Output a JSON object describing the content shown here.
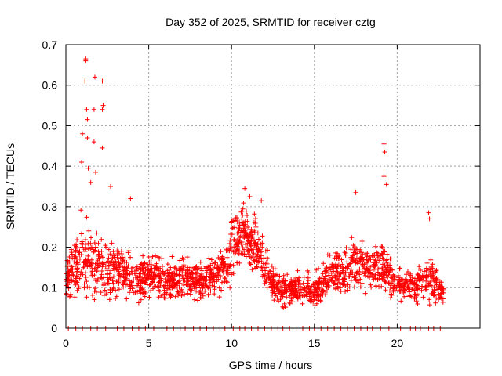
{
  "chart_data": {
    "type": "scatter",
    "title": "Day 352 of 2025, SRMTID for receiver cztg",
    "xlabel": "GPS time / hours",
    "ylabel": "SRMTID / TECUs",
    "xlim": [
      0,
      25
    ],
    "ylim": [
      0,
      0.7
    ],
    "x_ticks": [
      0,
      5,
      10,
      15,
      20
    ],
    "x_tick_labels": [
      "0",
      "5",
      "10",
      "15",
      "20"
    ],
    "y_ticks": [
      0,
      0.1,
      0.2,
      0.3,
      0.4,
      0.5,
      0.6,
      0.7
    ],
    "y_tick_labels": [
      "0",
      "0.1",
      "0.2",
      "0.3",
      "0.4",
      "0.5",
      "0.6",
      "0.7"
    ],
    "grid": true,
    "marker": "plus",
    "colors": {
      "series": "#ff0000",
      "grid": "#a0a0a0",
      "axis": "#000000"
    },
    "series": [
      {
        "name": "SRMTID",
        "envelope_hours": [
          0,
          0.5,
          1,
          1.5,
          2,
          2.5,
          3,
          3.5,
          4,
          4.5,
          5,
          5.5,
          6,
          6.5,
          7,
          7.5,
          8,
          8.5,
          9,
          9.5,
          10,
          10.5,
          11,
          11.5,
          12,
          12.5,
          13,
          13.5,
          14,
          14.5,
          15,
          15.5,
          16,
          16.5,
          17,
          17.5,
          18,
          18.5,
          19,
          19.5,
          20,
          20.5,
          21,
          21.5,
          22,
          22.5,
          22.8
        ],
        "envelope_center": [
          0.12,
          0.14,
          0.18,
          0.16,
          0.15,
          0.14,
          0.15,
          0.14,
          0.12,
          0.11,
          0.14,
          0.13,
          0.11,
          0.12,
          0.13,
          0.12,
          0.11,
          0.12,
          0.13,
          0.15,
          0.19,
          0.23,
          0.22,
          0.2,
          0.16,
          0.11,
          0.1,
          0.09,
          0.1,
          0.1,
          0.09,
          0.11,
          0.13,
          0.14,
          0.14,
          0.16,
          0.15,
          0.14,
          0.16,
          0.13,
          0.12,
          0.1,
          0.1,
          0.11,
          0.12,
          0.1,
          0.09
        ],
        "envelope_spread": [
          0.05,
          0.07,
          0.11,
          0.09,
          0.09,
          0.07,
          0.07,
          0.07,
          0.06,
          0.05,
          0.06,
          0.06,
          0.05,
          0.05,
          0.05,
          0.05,
          0.04,
          0.05,
          0.05,
          0.06,
          0.08,
          0.08,
          0.07,
          0.07,
          0.05,
          0.04,
          0.04,
          0.04,
          0.04,
          0.04,
          0.04,
          0.05,
          0.06,
          0.06,
          0.06,
          0.07,
          0.06,
          0.06,
          0.08,
          0.05,
          0.05,
          0.04,
          0.04,
          0.05,
          0.06,
          0.04,
          0.03
        ],
        "peaks": [
          {
            "x": 1.2,
            "y": 0.665
          },
          {
            "x": 1.2,
            "y": 0.66
          },
          {
            "x": 1.15,
            "y": 0.61
          },
          {
            "x": 1.75,
            "y": 0.62
          },
          {
            "x": 2.2,
            "y": 0.61
          },
          {
            "x": 1.25,
            "y": 0.54
          },
          {
            "x": 1.7,
            "y": 0.54
          },
          {
            "x": 2.25,
            "y": 0.55
          },
          {
            "x": 2.2,
            "y": 0.54
          },
          {
            "x": 1.3,
            "y": 0.515
          },
          {
            "x": 1.0,
            "y": 0.48
          },
          {
            "x": 1.3,
            "y": 0.47
          },
          {
            "x": 1.7,
            "y": 0.46
          },
          {
            "x": 2.2,
            "y": 0.445
          },
          {
            "x": 0.95,
            "y": 0.41
          },
          {
            "x": 1.35,
            "y": 0.395
          },
          {
            "x": 1.8,
            "y": 0.385
          },
          {
            "x": 1.5,
            "y": 0.36
          },
          {
            "x": 2.7,
            "y": 0.35
          },
          {
            "x": 3.9,
            "y": 0.32
          },
          {
            "x": 10.8,
            "y": 0.345
          },
          {
            "x": 11.1,
            "y": 0.325
          },
          {
            "x": 11.8,
            "y": 0.315
          },
          {
            "x": 17.5,
            "y": 0.335
          },
          {
            "x": 19.2,
            "y": 0.455
          },
          {
            "x": 19.25,
            "y": 0.435
          },
          {
            "x": 19.2,
            "y": 0.375
          },
          {
            "x": 19.35,
            "y": 0.355
          },
          {
            "x": 21.9,
            "y": 0.285
          },
          {
            "x": 21.95,
            "y": 0.27
          }
        ],
        "zero_hours": [
          0.15,
          0.6,
          1.0,
          1.5,
          1.9,
          2.4,
          3.1,
          3.5,
          4.0,
          4.4,
          4.8,
          5.3,
          5.8,
          6.1,
          6.5,
          6.9,
          7.2,
          7.7,
          8.1,
          8.5,
          8.9,
          9.3,
          9.6,
          10.1,
          10.5,
          10.8,
          11.2,
          11.6,
          12.0,
          12.4,
          12.8,
          13.1,
          13.5,
          13.9,
          14.3,
          14.7,
          15.0,
          15.4,
          15.8,
          16.2,
          16.6,
          17.0,
          17.4,
          17.8,
          18.2,
          18.5,
          19.0,
          19.5,
          20.2,
          20.8,
          21.1,
          21.4,
          21.9,
          22.2,
          22.6
        ]
      }
    ]
  }
}
